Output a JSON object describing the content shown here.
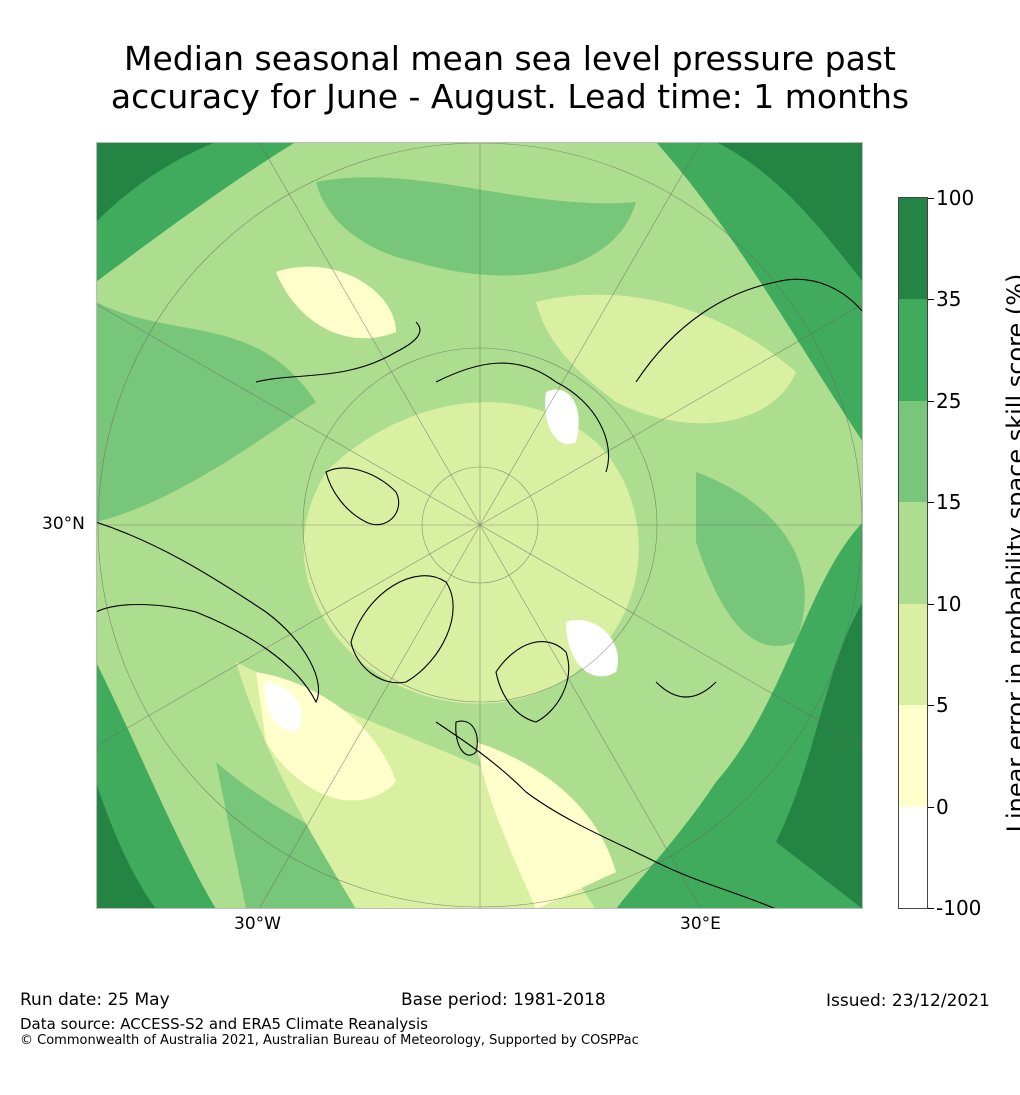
{
  "title": {
    "line1": "Median seasonal mean sea level pressure past",
    "line2": "accuracy for June - August. Lead time: 1 months"
  },
  "map": {
    "projection": "north-polar-stereographic",
    "lat_labels": [
      "30°N"
    ],
    "lon_labels": [
      "30°W",
      "30°E"
    ]
  },
  "colorbar": {
    "label": "Linear error in probability space skill score (%)",
    "ticks": [
      "100",
      "35",
      "25",
      "15",
      "10",
      "5",
      "0",
      "-100"
    ],
    "bins": [
      {
        "from": -100,
        "to": 0,
        "color": "#ffffff"
      },
      {
        "from": 0,
        "to": 5,
        "color": "#ffffcc"
      },
      {
        "from": 5,
        "to": 10,
        "color": "#d9f0a3"
      },
      {
        "from": 10,
        "to": 15,
        "color": "#addd8e"
      },
      {
        "from": 15,
        "to": 25,
        "color": "#78c679"
      },
      {
        "from": 25,
        "to": 35,
        "color": "#41ab5d"
      },
      {
        "from": 35,
        "to": 100,
        "color": "#238443"
      }
    ]
  },
  "footer": {
    "run_date": "Run date: 25 May",
    "base_period": "Base period: 1981-2018",
    "issued": "Issued: 23/12/2021",
    "data_source": "Data source: ACCESS-S2 and ERA5 Climate Reanalysis",
    "copyright": "© Commonwealth of Australia 2021, Australian Bureau of Meteorology, Supported by COSPPac"
  }
}
